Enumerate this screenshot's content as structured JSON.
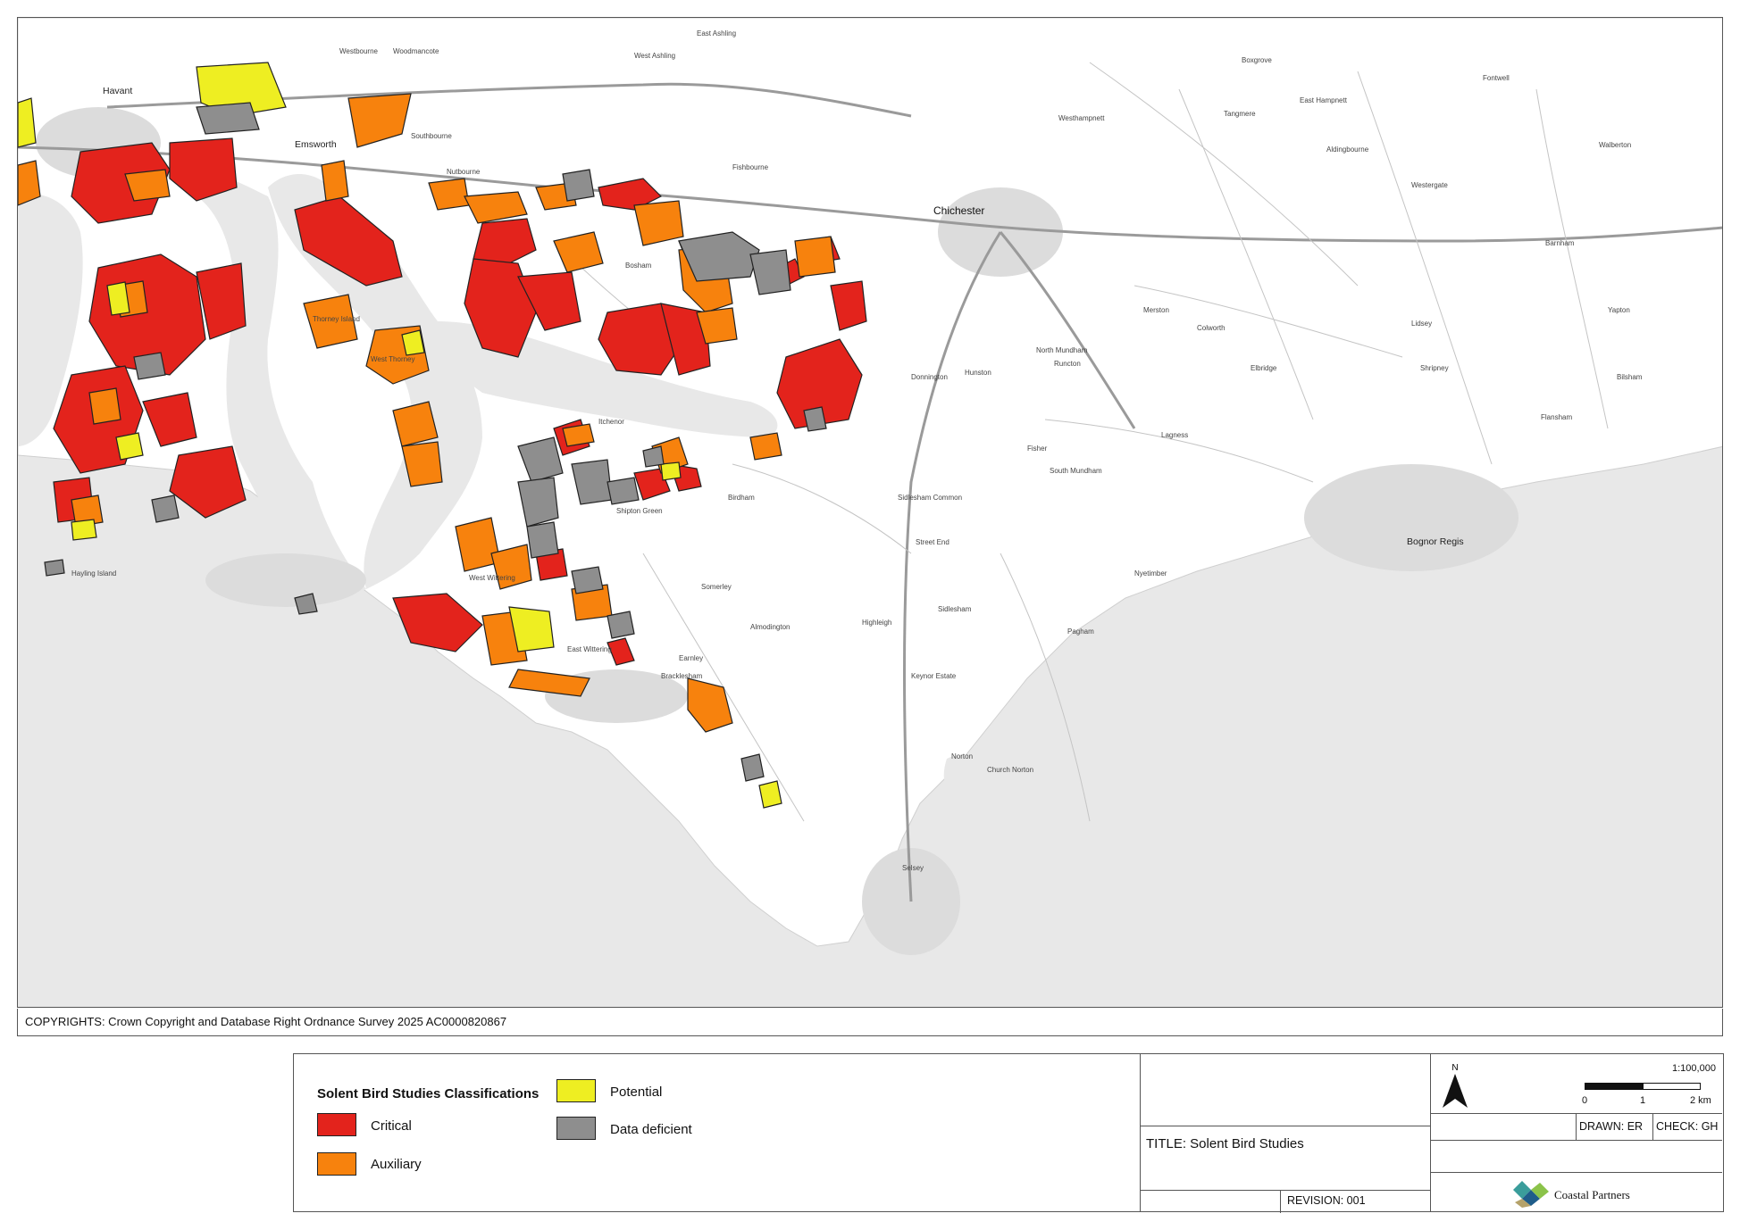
{
  "map": {
    "place_labels": [
      {
        "name": "Havant",
        "size": "big"
      },
      {
        "name": "Emsworth",
        "size": "big"
      },
      {
        "name": "Westbourne",
        "size": "small"
      },
      {
        "name": "Woodmancote",
        "size": "small"
      },
      {
        "name": "Southbourne",
        "size": "small"
      },
      {
        "name": "Nutbourne",
        "size": "small"
      },
      {
        "name": "West Ashling",
        "size": "small"
      },
      {
        "name": "East Ashling",
        "size": "small"
      },
      {
        "name": "Fishbourne",
        "size": "small"
      },
      {
        "name": "Bosham",
        "size": "small"
      },
      {
        "name": "Thorney Island",
        "size": "small"
      },
      {
        "name": "West Thorney",
        "size": "small"
      },
      {
        "name": "Chichester",
        "size": "city"
      },
      {
        "name": "Westhampnett",
        "size": "small"
      },
      {
        "name": "Tangmere",
        "size": "small"
      },
      {
        "name": "Boxgrove",
        "size": "small"
      },
      {
        "name": "East Hampnett",
        "size": "small"
      },
      {
        "name": "Aldingbourne",
        "size": "small"
      },
      {
        "name": "Westergate",
        "size": "small"
      },
      {
        "name": "Fontwell",
        "size": "small"
      },
      {
        "name": "Walberton",
        "size": "small"
      },
      {
        "name": "Barnham",
        "size": "small"
      },
      {
        "name": "Yapton",
        "size": "small"
      },
      {
        "name": "Donnington",
        "size": "small"
      },
      {
        "name": "Hunston",
        "size": "small"
      },
      {
        "name": "North Mundham",
        "size": "small"
      },
      {
        "name": "Runcton",
        "size": "small"
      },
      {
        "name": "Merston",
        "size": "small"
      },
      {
        "name": "Colworth",
        "size": "small"
      },
      {
        "name": "Lidsey",
        "size": "small"
      },
      {
        "name": "Shripney",
        "size": "small"
      },
      {
        "name": "Elbridge",
        "size": "small"
      },
      {
        "name": "Bilsham",
        "size": "small"
      },
      {
        "name": "Flansham",
        "size": "small"
      },
      {
        "name": "Bognor Regis",
        "size": "big"
      },
      {
        "name": "Birdham",
        "size": "small"
      },
      {
        "name": "Shipton Green",
        "size": "small"
      },
      {
        "name": "Itchenor",
        "size": "small"
      },
      {
        "name": "West Wittering",
        "size": "small"
      },
      {
        "name": "East Wittering",
        "size": "small"
      },
      {
        "name": "Bracklesham",
        "size": "small"
      },
      {
        "name": "Earnley",
        "size": "small"
      },
      {
        "name": "Somerley",
        "size": "small"
      },
      {
        "name": "Almodington",
        "size": "small"
      },
      {
        "name": "Sidlesham Common",
        "size": "small"
      },
      {
        "name": "Street End",
        "size": "small"
      },
      {
        "name": "Sidlesham",
        "size": "small"
      },
      {
        "name": "Highleigh",
        "size": "small"
      },
      {
        "name": "Keynor Estate",
        "size": "small"
      },
      {
        "name": "South Mundham",
        "size": "small"
      },
      {
        "name": "Pagham",
        "size": "small"
      },
      {
        "name": "Nyetimber",
        "size": "small"
      },
      {
        "name": "Norton",
        "size": "small"
      },
      {
        "name": "Church Norton",
        "size": "small"
      },
      {
        "name": "Selsey",
        "size": "small"
      },
      {
        "name": "Fisher",
        "size": "small"
      },
      {
        "name": "Lagness",
        "size": "small"
      },
      {
        "name": "Hayling Island",
        "size": "small"
      }
    ]
  },
  "copyright": "COPYRIGHTS: Crown Copyright and Database Right Ordnance Survey 2025 AC0000820867",
  "legend": {
    "title": "Solent Bird Studies Classifications",
    "items": [
      {
        "label": "Critical",
        "color": "#e3231c"
      },
      {
        "label": "Auxiliary",
        "color": "#f7820d"
      },
      {
        "label": "Potential",
        "color": "#eeee22"
      },
      {
        "label": "Data deficient",
        "color": "#8e8e8e"
      }
    ]
  },
  "title_block": {
    "title": "TITLE: Solent Bird Studies",
    "revision": "REVISION: 001"
  },
  "info_block": {
    "north_label": "N",
    "scale_ratio": "1:100,000",
    "scale_ticks": [
      "0",
      "1",
      "2 km"
    ],
    "drawn": "DRAWN: ER",
    "check": "CHECK: GH",
    "company": "Coastal Partners",
    "logo_colors": [
      "#3a9d9b",
      "#1f5d8a",
      "#8bc34a",
      "#b5a26a"
    ]
  }
}
